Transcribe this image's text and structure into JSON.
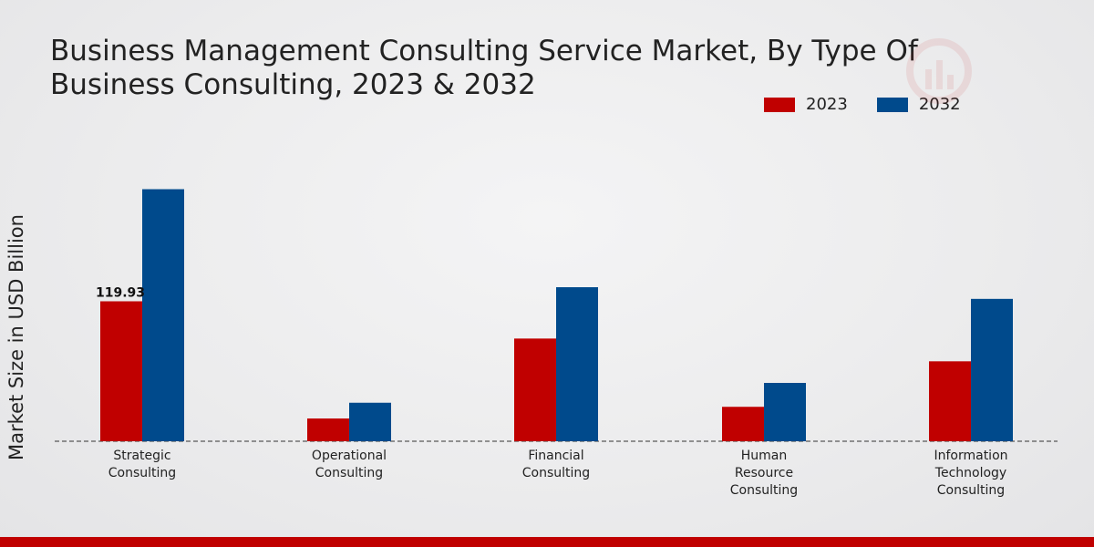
{
  "chart_data": {
    "type": "bar",
    "title": "Business Management Consulting Service Market, By Type Of Business Consulting, 2023 & 2032",
    "xlabel": "",
    "ylabel": "Market Size in USD Billion",
    "categories": [
      [
        "Strategic",
        "Consulting"
      ],
      [
        "Operational",
        "Consulting"
      ],
      [
        "Financial",
        "Consulting"
      ],
      [
        "Human",
        "Resource",
        "Consulting"
      ],
      [
        "Information",
        "Technology",
        "Consulting"
      ]
    ],
    "series": [
      {
        "name": "2023",
        "color": "#c00000",
        "values": [
          119.93,
          19.5,
          88.0,
          29.5,
          68.5
        ]
      },
      {
        "name": "2032",
        "color": "#004a8c",
        "values": [
          216.0,
          33.0,
          132.0,
          50.0,
          122.0
        ]
      }
    ],
    "data_labels": [
      {
        "series": 0,
        "index": 0,
        "text": "119.93"
      }
    ],
    "ylim": [
      0,
      300
    ],
    "legend_position": "top-right",
    "grid": false
  },
  "colors": {
    "accent": "#c00000",
    "secondary": "#004a8c"
  }
}
